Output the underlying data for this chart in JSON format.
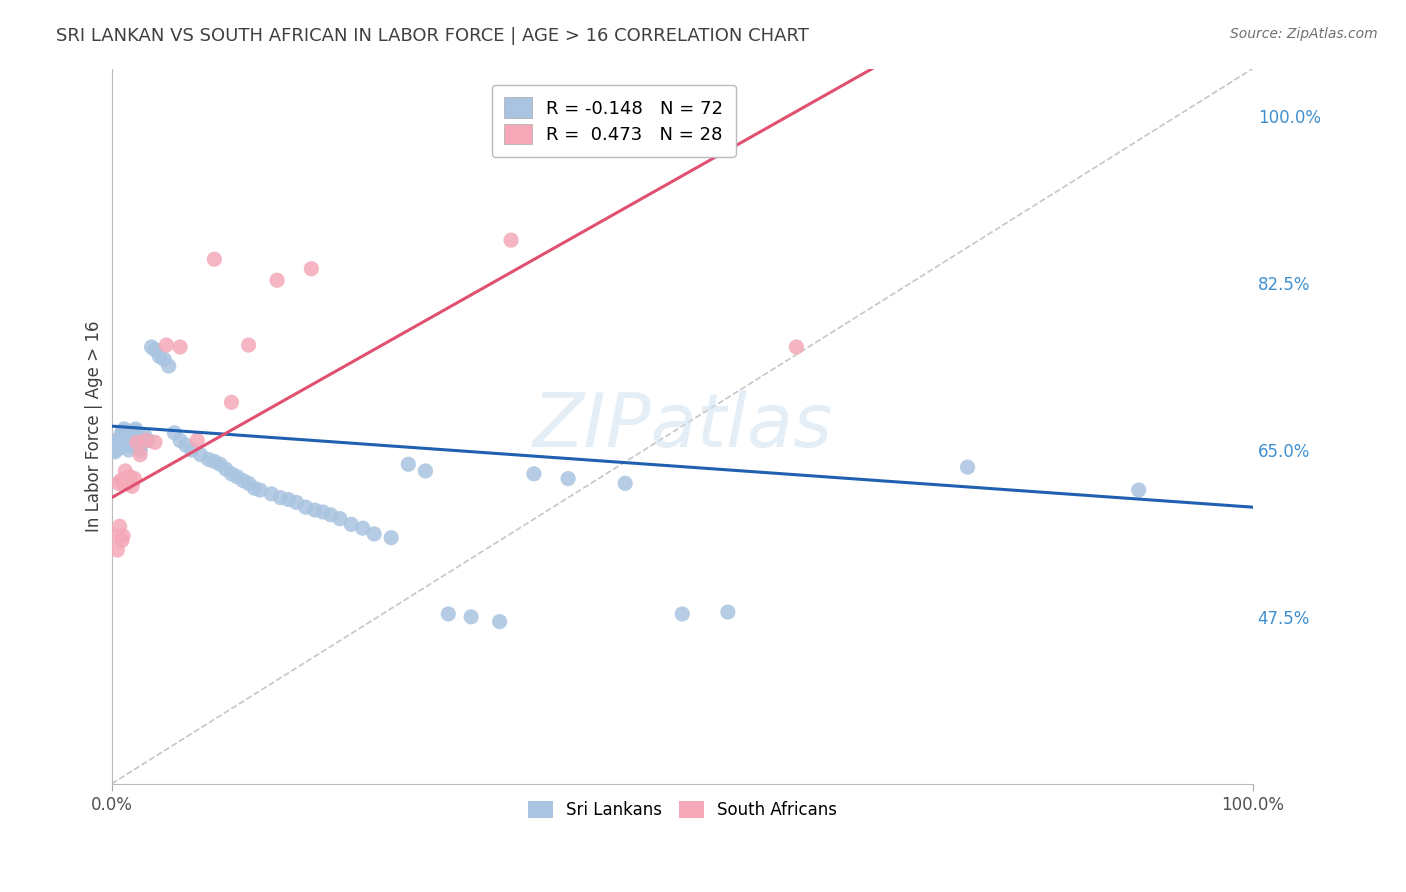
{
  "title": "SRI LANKAN VS SOUTH AFRICAN IN LABOR FORCE | AGE > 16 CORRELATION CHART",
  "source": "Source: ZipAtlas.com",
  "ylabel": "In Labor Force | Age > 16",
  "xlim": [
    0.0,
    1.0
  ],
  "ylim": [
    0.3,
    1.05
  ],
  "ytick_vals": [
    0.475,
    0.65,
    0.825,
    1.0
  ],
  "ytick_labels": [
    "47.5%",
    "65.0%",
    "82.5%",
    "100.0%"
  ],
  "xtick_vals": [
    0.0,
    1.0
  ],
  "xtick_labels": [
    "0.0%",
    "100.0%"
  ],
  "sri_lankan_R": -0.148,
  "sri_lankan_N": 72,
  "south_african_R": 0.473,
  "south_african_N": 28,
  "sri_lankan_color": "#a8c4e0",
  "south_african_color": "#f4a8b8",
  "sri_lankan_line_color": "#2060b0",
  "south_african_line_color": "#e05070",
  "diagonal_color": "#c0c0c0",
  "watermark": "ZIPatlas",
  "background_color": "#ffffff",
  "grid_color": "#dddddd",
  "title_color": "#404040",
  "axis_label_color": "#404040",
  "right_tick_color": "#4090d0",
  "sl_line_x0": 0.0,
  "sl_line_y0": 0.675,
  "sl_line_x1": 1.0,
  "sl_line_y1": 0.59,
  "sa_line_x0": 0.0,
  "sa_line_y0": 0.6,
  "sa_line_x1": 0.4,
  "sa_line_y1": 0.87,
  "sl_x": [
    0.002,
    0.003,
    0.004,
    0.005,
    0.006,
    0.007,
    0.008,
    0.009,
    0.01,
    0.011,
    0.012,
    0.013,
    0.014,
    0.015,
    0.016,
    0.017,
    0.018,
    0.019,
    0.02,
    0.021,
    0.022,
    0.023,
    0.024,
    0.025,
    0.027,
    0.029,
    0.032,
    0.035,
    0.038,
    0.042,
    0.046,
    0.05,
    0.055,
    0.06,
    0.065,
    0.07,
    0.078,
    0.085,
    0.09,
    0.095,
    0.1,
    0.105,
    0.11,
    0.115,
    0.12,
    0.125,
    0.13,
    0.14,
    0.148,
    0.155,
    0.162,
    0.17,
    0.178,
    0.185,
    0.192,
    0.2,
    0.21,
    0.22,
    0.23,
    0.245,
    0.26,
    0.275,
    0.295,
    0.315,
    0.34,
    0.37,
    0.4,
    0.45,
    0.5,
    0.54,
    0.75,
    0.9
  ],
  "sl_y": [
    0.65,
    0.648,
    0.655,
    0.66,
    0.658,
    0.652,
    0.665,
    0.668,
    0.67,
    0.672,
    0.668,
    0.66,
    0.655,
    0.65,
    0.655,
    0.66,
    0.665,
    0.668,
    0.67,
    0.672,
    0.668,
    0.66,
    0.655,
    0.65,
    0.658,
    0.665,
    0.66,
    0.758,
    0.755,
    0.748,
    0.745,
    0.738,
    0.668,
    0.66,
    0.655,
    0.65,
    0.645,
    0.64,
    0.638,
    0.635,
    0.63,
    0.625,
    0.622,
    0.618,
    0.615,
    0.61,
    0.608,
    0.604,
    0.6,
    0.598,
    0.595,
    0.59,
    0.587,
    0.585,
    0.582,
    0.578,
    0.572,
    0.568,
    0.562,
    0.558,
    0.635,
    0.628,
    0.478,
    0.475,
    0.47,
    0.625,
    0.62,
    0.615,
    0.478,
    0.48,
    0.632,
    0.608
  ],
  "sa_x": [
    0.003,
    0.005,
    0.006,
    0.007,
    0.008,
    0.009,
    0.01,
    0.011,
    0.012,
    0.013,
    0.014,
    0.016,
    0.018,
    0.02,
    0.022,
    0.025,
    0.03,
    0.038,
    0.048,
    0.06,
    0.075,
    0.09,
    0.105,
    0.12,
    0.145,
    0.175,
    0.35,
    0.6
  ],
  "sa_y": [
    0.56,
    0.545,
    0.615,
    0.57,
    0.618,
    0.555,
    0.56,
    0.615,
    0.628,
    0.62,
    0.615,
    0.622,
    0.612,
    0.62,
    0.658,
    0.645,
    0.66,
    0.658,
    0.76,
    0.758,
    0.66,
    0.85,
    0.7,
    0.76,
    0.828,
    0.84,
    0.87,
    0.758
  ]
}
